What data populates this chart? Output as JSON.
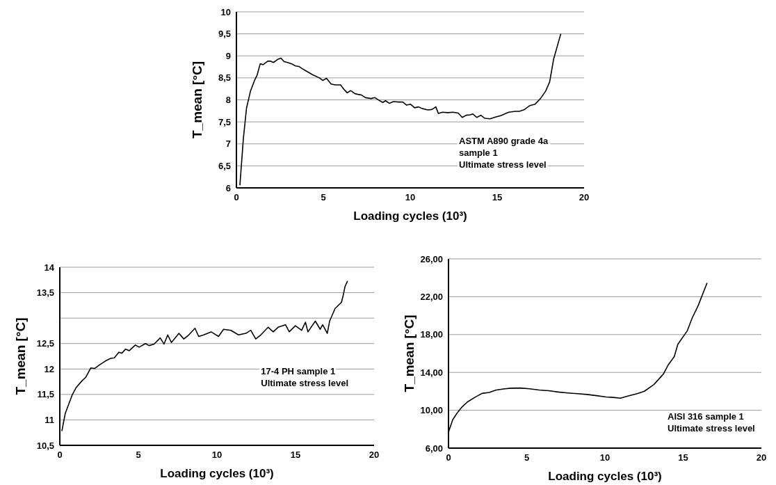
{
  "chart_data": [
    {
      "type": "line",
      "xlabel": "Loading cycles (10³)",
      "ylabel": "T_mean [°C]",
      "xlim": [
        0,
        20
      ],
      "xticks": [
        0,
        5,
        10,
        15,
        20
      ],
      "ylim": [
        6,
        10
      ],
      "yticks": [
        6,
        {
          "value": 6.5,
          "label": "6,5"
        },
        7,
        {
          "value": 7.5,
          "label": "7,5"
        },
        8,
        {
          "value": 8.5,
          "label": "8,5"
        },
        9,
        {
          "value": 9.5,
          "label": "9,5"
        },
        10
      ],
      "grid": "y",
      "annotations": [
        "ASTM A890 grade 4a\nsample 1\nUltimate stress level"
      ],
      "series": [
        {
          "color": "#000000",
          "x": [
            0.2,
            0.4,
            0.58,
            0.81,
            1.04,
            1.19,
            1.37,
            1.54,
            1.8,
            1.95,
            2.13,
            2.38,
            2.56,
            2.74,
            2.94,
            3.17,
            3.4,
            3.59,
            3.78,
            4.08,
            4.39,
            4.77,
            4.97,
            5.18,
            5.45,
            5.68,
            5.99,
            6.18,
            6.37,
            6.57,
            6.82,
            7.05,
            7.2,
            7.43,
            7.74,
            7.97,
            8.2,
            8.42,
            8.58,
            8.8,
            9.03,
            9.34,
            9.57,
            9.79,
            10.02,
            10.25,
            10.48,
            10.71,
            11.01,
            11.24,
            11.47,
            11.62,
            11.85,
            12.16,
            12.46,
            12.76,
            12.99,
            13.22,
            13.45,
            13.6,
            13.83,
            14.06,
            14.29,
            14.59,
            14.9,
            15.2,
            15.43,
            15.66,
            16.04,
            16.27,
            16.57,
            16.88,
            17.18,
            17.49,
            17.79,
            18.02,
            18.25,
            18.66
          ],
          "values": [
            6.06,
            7.12,
            7.81,
            8.2,
            8.44,
            8.56,
            8.82,
            8.8,
            8.88,
            8.88,
            8.85,
            8.92,
            8.95,
            8.87,
            8.85,
            8.82,
            8.77,
            8.76,
            8.71,
            8.64,
            8.57,
            8.5,
            8.44,
            8.49,
            8.36,
            8.34,
            8.34,
            8.24,
            8.16,
            8.21,
            8.14,
            8.12,
            8.11,
            8.05,
            8.03,
            8.05,
            7.99,
            7.94,
            7.98,
            7.92,
            7.96,
            7.95,
            7.95,
            7.88,
            7.9,
            7.82,
            7.84,
            7.8,
            7.77,
            7.78,
            7.84,
            7.69,
            7.72,
            7.71,
            7.72,
            7.7,
            7.6,
            7.65,
            7.66,
            7.68,
            7.6,
            7.65,
            7.58,
            7.57,
            7.61,
            7.64,
            7.68,
            7.72,
            7.74,
            7.74,
            7.78,
            7.87,
            7.9,
            8.03,
            8.2,
            8.41,
            8.93,
            9.5
          ]
        }
      ]
    },
    {
      "type": "line",
      "xlabel": "Loading cycles (10³)",
      "ylabel": "T_mean [°C]",
      "xlim": [
        0,
        20
      ],
      "xticks": [
        0,
        5,
        10,
        15,
        20
      ],
      "ylim": [
        10.5,
        14
      ],
      "yticks": [
        {
          "value": 10.5,
          "label": "10,5"
        },
        11,
        {
          "value": 11.5,
          "label": "11,5"
        },
        12,
        {
          "value": 12.5,
          "label": "12,5"
        },
        {
          "value": 13,
          "label": null
        },
        {
          "value": 13.5,
          "label": "13,5"
        },
        14
      ],
      "grid": "y",
      "annotations": [
        "17-4 PH sample 1\nUltimate stress level"
      ],
      "series": [
        {
          "color": "#000000",
          "x": [
            0.13,
            0.35,
            0.79,
            1.03,
            1.42,
            1.66,
            1.97,
            2.21,
            2.53,
            2.92,
            3.24,
            3.47,
            3.76,
            3.95,
            4.18,
            4.42,
            4.81,
            5.05,
            5.45,
            5.68,
            6.0,
            6.39,
            6.63,
            6.87,
            7.1,
            7.58,
            7.89,
            8.21,
            8.6,
            8.84,
            9.16,
            9.63,
            10.1,
            10.42,
            10.89,
            11.37,
            11.84,
            12.15,
            12.47,
            12.79,
            13.26,
            13.58,
            13.89,
            14.36,
            14.6,
            14.99,
            15.39,
            15.63,
            15.79,
            16.26,
            16.57,
            16.73,
            17.02,
            17.17,
            17.52,
            17.92,
            18.03,
            18.15,
            18.31
          ],
          "values": [
            10.78,
            11.13,
            11.49,
            11.63,
            11.77,
            11.84,
            12.02,
            12.01,
            12.08,
            12.16,
            12.21,
            12.22,
            12.33,
            12.31,
            12.39,
            12.36,
            12.47,
            12.43,
            12.5,
            12.46,
            12.49,
            12.61,
            12.49,
            12.67,
            12.52,
            12.7,
            12.59,
            12.67,
            12.8,
            12.64,
            12.67,
            12.73,
            12.64,
            12.78,
            12.76,
            12.67,
            12.7,
            12.76,
            12.59,
            12.67,
            12.82,
            12.73,
            12.82,
            12.87,
            12.73,
            12.85,
            12.76,
            12.92,
            12.73,
            12.94,
            12.78,
            12.87,
            12.7,
            12.94,
            13.19,
            13.31,
            13.44,
            13.62,
            13.73
          ]
        }
      ]
    },
    {
      "type": "line",
      "xlabel": "Loading cycles (10³)",
      "ylabel": "T_mean [°C]",
      "xlim": [
        0,
        20
      ],
      "xticks": [
        0,
        5,
        10,
        15,
        20
      ],
      "ylim": [
        6,
        26
      ],
      "yticks": [
        {
          "value": 6,
          "label": "6,00"
        },
        {
          "value": 10,
          "label": "10,00"
        },
        {
          "value": 14,
          "label": "14,00"
        },
        {
          "value": 18,
          "label": "18,00"
        },
        {
          "value": 22,
          "label": "22,00"
        },
        {
          "value": 26,
          "label": "26,00"
        }
      ],
      "grid": "y",
      "annotations": [
        "AISI 316 sample 1\nUltimate stress level"
      ],
      "series": [
        {
          "color": "#000000",
          "x": [
            0,
            0.27,
            0.53,
            0.84,
            1.22,
            1.68,
            2.14,
            2.6,
            3.05,
            3.51,
            3.97,
            4.58,
            5.19,
            5.8,
            6.41,
            7.02,
            7.63,
            8.24,
            8.85,
            9.47,
            10.08,
            10.53,
            10.99,
            11.45,
            12.06,
            12.52,
            13.13,
            13.74,
            14.05,
            14.43,
            14.66,
            15.27,
            15.57,
            15.95,
            16.53
          ],
          "values": [
            7.7,
            9.0,
            9.66,
            10.31,
            10.89,
            11.36,
            11.78,
            11.88,
            12.14,
            12.25,
            12.33,
            12.35,
            12.27,
            12.14,
            12.07,
            11.93,
            11.83,
            11.75,
            11.67,
            11.54,
            11.41,
            11.36,
            11.28,
            11.49,
            11.75,
            12.01,
            12.72,
            13.84,
            14.81,
            15.67,
            16.98,
            18.42,
            19.73,
            21.03,
            23.46
          ]
        }
      ]
    }
  ]
}
